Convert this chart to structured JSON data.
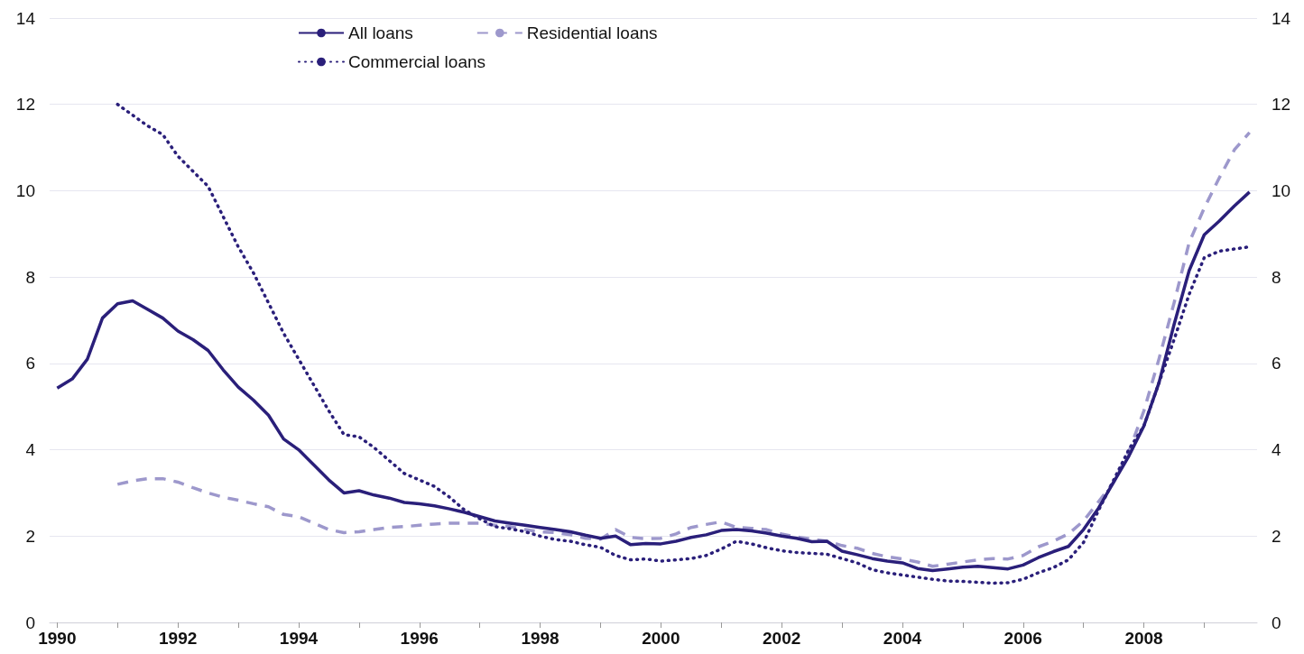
{
  "chart_data": {
    "type": "line",
    "marker": "none",
    "grid": "y",
    "legend": "top",
    "x": [
      1990,
      1990.25,
      1990.5,
      1990.75,
      1991,
      1991.25,
      1991.5,
      1991.75,
      1992,
      1992.25,
      1992.5,
      1992.75,
      1993,
      1993.25,
      1993.5,
      1993.75,
      1994,
      1994.25,
      1994.5,
      1994.75,
      1995,
      1995.25,
      1995.5,
      1995.75,
      1996,
      1996.25,
      1996.5,
      1996.75,
      1997,
      1997.25,
      1997.5,
      1997.75,
      1998,
      1998.25,
      1998.5,
      1998.75,
      1999,
      1999.25,
      1999.5,
      1999.75,
      2000,
      2000.25,
      2000.5,
      2000.75,
      2001,
      2001.25,
      2001.5,
      2001.75,
      2002,
      2002.25,
      2002.5,
      2002.75,
      2003,
      2003.25,
      2003.5,
      2003.75,
      2004,
      2004.25,
      2004.5,
      2004.75,
      2005,
      2005.25,
      2005.5,
      2005.75,
      2006,
      2006.25,
      2006.5,
      2006.75,
      2007,
      2007.25,
      2007.5,
      2007.75,
      2008,
      2008.25,
      2008.5,
      2008.75,
      2009,
      2009.25,
      2009.5,
      2009.75
    ],
    "series": [
      {
        "name": "All loans",
        "color": "#2a1f7a",
        "line_style": "solid",
        "values": [
          5.43,
          5.64,
          6.1,
          7.05,
          7.38,
          7.45,
          7.25,
          7.05,
          6.75,
          6.55,
          6.3,
          5.85,
          5.45,
          5.15,
          4.8,
          4.25,
          4.0,
          3.65,
          3.3,
          3.0,
          3.05,
          2.95,
          2.88,
          2.78,
          2.75,
          2.7,
          2.63,
          2.55,
          2.45,
          2.35,
          2.3,
          2.25,
          2.2,
          2.15,
          2.1,
          2.02,
          1.95,
          2.0,
          1.8,
          1.83,
          1.82,
          1.88,
          1.97,
          2.03,
          2.13,
          2.15,
          2.12,
          2.07,
          2.0,
          1.95,
          1.87,
          1.88,
          1.65,
          1.57,
          1.48,
          1.42,
          1.38,
          1.25,
          1.2,
          1.24,
          1.28,
          1.3,
          1.27,
          1.24,
          1.33,
          1.5,
          1.64,
          1.76,
          2.15,
          2.65,
          3.25,
          3.85,
          4.55,
          5.55,
          6.9,
          8.15,
          8.98,
          9.3,
          9.65,
          9.97
        ]
      },
      {
        "name": "Commercial loans",
        "color": "#2a1f7a",
        "line_style": "dotted",
        "values": [
          null,
          null,
          null,
          null,
          12.0,
          11.75,
          11.5,
          11.3,
          10.8,
          10.45,
          10.1,
          9.4,
          8.7,
          8.1,
          7.4,
          6.7,
          6.1,
          5.5,
          4.9,
          4.35,
          4.3,
          4.05,
          3.75,
          3.45,
          3.3,
          3.15,
          2.9,
          2.6,
          2.4,
          2.22,
          2.17,
          2.1,
          2.0,
          1.92,
          1.88,
          1.8,
          1.74,
          1.55,
          1.45,
          1.47,
          1.42,
          1.45,
          1.48,
          1.55,
          1.7,
          1.88,
          1.82,
          1.73,
          1.66,
          1.62,
          1.6,
          1.58,
          1.48,
          1.38,
          1.22,
          1.15,
          1.1,
          1.05,
          1.0,
          0.96,
          0.95,
          0.93,
          0.91,
          0.92,
          1.0,
          1.15,
          1.27,
          1.45,
          1.85,
          2.6,
          3.3,
          4.0,
          4.55,
          5.55,
          6.55,
          7.6,
          8.45,
          8.6,
          8.65,
          8.7
        ]
      },
      {
        "name": "Residential loans",
        "color": "#9d98cc",
        "line_style": "dashed",
        "values": [
          null,
          null,
          null,
          null,
          3.2,
          3.28,
          3.33,
          3.33,
          3.25,
          3.12,
          3.0,
          2.9,
          2.83,
          2.75,
          2.68,
          2.5,
          2.45,
          2.3,
          2.15,
          2.08,
          2.1,
          2.15,
          2.2,
          2.22,
          2.25,
          2.28,
          2.3,
          2.3,
          2.3,
          2.25,
          2.22,
          2.15,
          2.1,
          2.08,
          2.03,
          1.95,
          1.93,
          2.15,
          1.97,
          1.94,
          1.95,
          2.05,
          2.2,
          2.27,
          2.33,
          2.2,
          2.18,
          2.15,
          2.05,
          1.98,
          1.93,
          1.88,
          1.78,
          1.72,
          1.6,
          1.52,
          1.47,
          1.4,
          1.3,
          1.35,
          1.4,
          1.45,
          1.48,
          1.47,
          1.55,
          1.75,
          1.88,
          2.05,
          2.35,
          2.8,
          3.25,
          3.95,
          4.9,
          6.1,
          7.4,
          8.8,
          9.6,
          10.3,
          10.95,
          11.35
        ]
      }
    ],
    "xlim": [
      1989.875,
      2009.875
    ],
    "xticks": [
      {
        "value": 1990,
        "label": "1990"
      },
      {
        "value": 1991,
        "label": null
      },
      {
        "value": 1992,
        "label": "1992"
      },
      {
        "value": 1993,
        "label": null
      },
      {
        "value": 1994,
        "label": "1994"
      },
      {
        "value": 1995,
        "label": null
      },
      {
        "value": 1996,
        "label": "1996"
      },
      {
        "value": 1997,
        "label": null
      },
      {
        "value": 1998,
        "label": "1998"
      },
      {
        "value": 1999,
        "label": null
      },
      {
        "value": 2000,
        "label": "2000"
      },
      {
        "value": 2001,
        "label": null
      },
      {
        "value": 2002,
        "label": "2002"
      },
      {
        "value": 2003,
        "label": null
      },
      {
        "value": 2004,
        "label": "2004"
      },
      {
        "value": 2005,
        "label": null
      },
      {
        "value": 2006,
        "label": "2006"
      },
      {
        "value": 2007,
        "label": null
      },
      {
        "value": 2008,
        "label": "2008"
      },
      {
        "value": 2009,
        "label": null
      }
    ],
    "ylim": [
      0,
      14
    ],
    "yticks": [
      0,
      2,
      4,
      6,
      8,
      10,
      12,
      14
    ],
    "y2lim": [
      0,
      14
    ],
    "y2ticks": [
      0,
      2,
      4,
      6,
      8,
      10,
      12,
      14
    ]
  }
}
